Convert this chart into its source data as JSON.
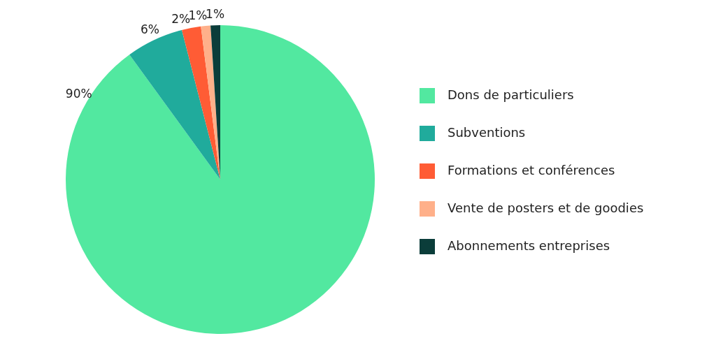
{
  "chart_data": {
    "type": "pie",
    "categories": [
      "Dons de particuliers",
      "Subventions",
      "Formations et conférences",
      "Vente de posters et de goodies",
      "Abonnements entreprises"
    ],
    "values": [
      90,
      6,
      2,
      1,
      1
    ],
    "colors": [
      "#52e8a0",
      "#20ab9c",
      "#ff5c35",
      "#ffb08a",
      "#0b3d3a"
    ],
    "value_labels": [
      "90%",
      "6%",
      "2%",
      "1%",
      "1%"
    ],
    "legend": "right"
  }
}
